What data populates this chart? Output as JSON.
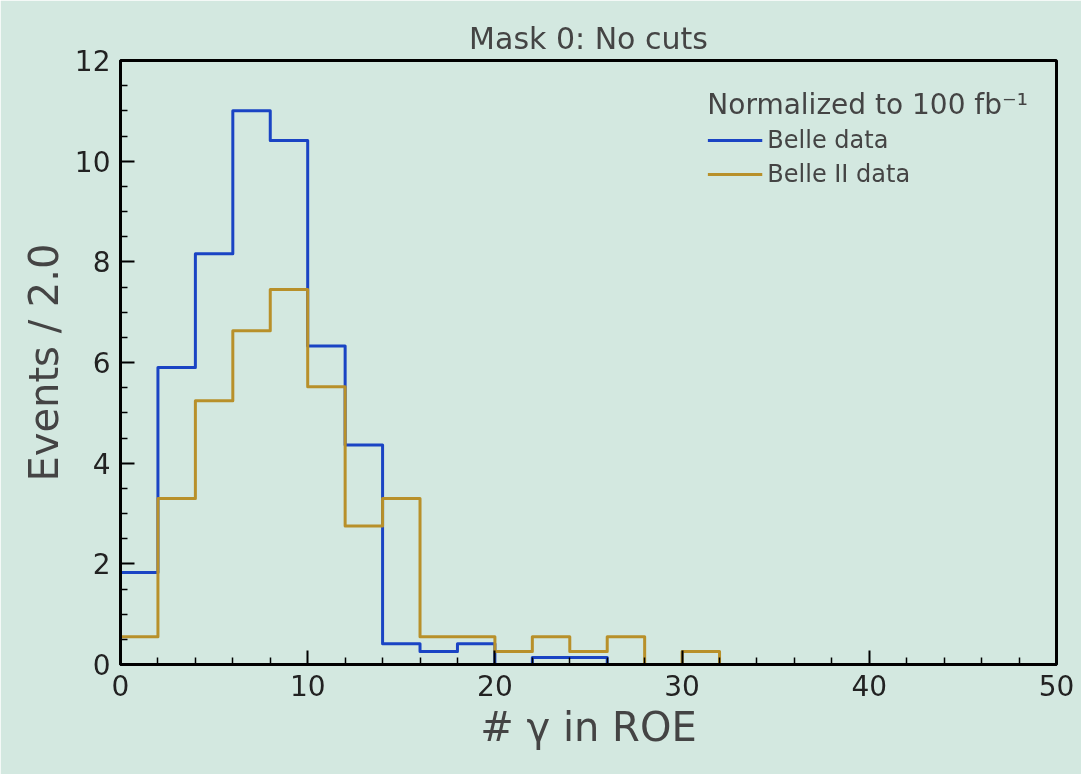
{
  "chart_data": {
    "type": "histogram",
    "title": "Mask 0: No cuts",
    "xlabel": "# γ in ROE",
    "ylabel": "Events / 2.0",
    "legend_title": "Normalized to 100 fb⁻¹",
    "bins": [
      0,
      2,
      4,
      6,
      8,
      10,
      12,
      14,
      16,
      18,
      20,
      22,
      24,
      26,
      28,
      30,
      32,
      34,
      36,
      38,
      40,
      42,
      44,
      46,
      48,
      50
    ],
    "series": [
      {
        "name": "Belle data",
        "color": "#1a44c4",
        "values": [
          1.83,
          5.9,
          8.16,
          11.0,
          10.41,
          6.33,
          4.36,
          0.41,
          0.26,
          0.41,
          0,
          0.14,
          0.14,
          0,
          0,
          0,
          0,
          0,
          0,
          0,
          0,
          0,
          0,
          0,
          0
        ]
      },
      {
        "name": "Belle II data",
        "color": "#b8902a",
        "values": [
          0.55,
          3.3,
          5.24,
          6.63,
          7.45,
          5.52,
          2.75,
          3.3,
          0.55,
          0.55,
          0.26,
          0.55,
          0.26,
          0.55,
          0,
          0.26,
          0,
          0,
          0,
          0,
          0,
          0,
          0,
          0,
          0
        ]
      }
    ],
    "xlim": [
      0,
      50
    ],
    "ylim": [
      0,
      12
    ],
    "xticks": [
      0,
      {
        "value": 2,
        "label": null
      },
      {
        "value": 4,
        "label": null
      },
      {
        "value": 6,
        "label": null
      },
      {
        "value": 8,
        "label": null
      },
      10,
      {
        "value": 12,
        "label": null
      },
      {
        "value": 14,
        "label": null
      },
      {
        "value": 16,
        "label": null
      },
      {
        "value": 18,
        "label": null
      },
      20,
      {
        "value": 22,
        "label": null
      },
      {
        "value": 24,
        "label": null
      },
      {
        "value": 26,
        "label": null
      },
      {
        "value": 28,
        "label": null
      },
      30,
      {
        "value": 32,
        "label": null
      },
      {
        "value": 34,
        "label": null
      },
      {
        "value": 36,
        "label": null
      },
      {
        "value": 38,
        "label": null
      },
      40,
      {
        "value": 42,
        "label": null
      },
      {
        "value": 44,
        "label": null
      },
      {
        "value": 46,
        "label": null
      },
      {
        "value": 48,
        "label": null
      },
      50
    ],
    "yticks": [
      0,
      {
        "value": 0.5,
        "label": null
      },
      {
        "value": 1,
        "label": null
      },
      {
        "value": 1.5,
        "label": null
      },
      2,
      {
        "value": 2.5,
        "label": null
      },
      {
        "value": 3,
        "label": null
      },
      {
        "value": 3.5,
        "label": null
      },
      4,
      {
        "value": 4.5,
        "label": null
      },
      {
        "value": 5,
        "label": null
      },
      {
        "value": 5.5,
        "label": null
      },
      6,
      {
        "value": 6.5,
        "label": null
      },
      {
        "value": 7,
        "label": null
      },
      {
        "value": 7.5,
        "label": null
      },
      8,
      {
        "value": 8.5,
        "label": null
      },
      {
        "value": 9,
        "label": null
      },
      {
        "value": 9.5,
        "label": null
      },
      10,
      {
        "value": 10.5,
        "label": null
      },
      {
        "value": 11,
        "label": null
      },
      {
        "value": 11.5,
        "label": null
      },
      12
    ],
    "legend": "top right",
    "grid": false
  }
}
